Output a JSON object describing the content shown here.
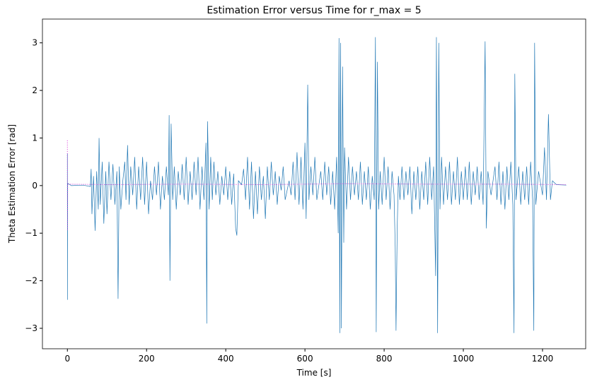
{
  "chart_data": {
    "type": "line",
    "title": "Estimation Error versus Time for r_max = 5",
    "x_label": "Time [s]",
    "y_label": "Theta Estimation Error [rad]",
    "xlim": [
      -63,
      1309
    ],
    "ylim": [
      -3.43,
      3.5
    ],
    "xticks": [
      0,
      200,
      400,
      600,
      800,
      1000,
      1200
    ],
    "yticks": [
      {
        "value": -3,
        "label": "−3"
      },
      {
        "value": -2,
        "label": "−2"
      },
      {
        "value": -1,
        "label": "−1"
      },
      0,
      1,
      2,
      3
    ],
    "series": [
      {
        "color": "#1f77b4",
        "style": "solid",
        "x": [
          0,
          0.3,
          0.6,
          10,
          40,
          58,
          60,
          62,
          66,
          70,
          74,
          78,
          80,
          83,
          88,
          92,
          97,
          100,
          105,
          110,
          115,
          120,
          125,
          128,
          131,
          135,
          140,
          145,
          148,
          152,
          156,
          160,
          165,
          170,
          175,
          180,
          185,
          190,
          195,
          200,
          205,
          210,
          215,
          220,
          225,
          230,
          235,
          240,
          245,
          250,
          255,
          257,
          259,
          262,
          266,
          270,
          275,
          280,
          285,
          290,
          295,
          300,
          305,
          310,
          315,
          320,
          325,
          330,
          335,
          340,
          345,
          350,
          352,
          354,
          358,
          362,
          366,
          370,
          375,
          380,
          385,
          390,
          395,
          400,
          405,
          410,
          415,
          420,
          425,
          428,
          432,
          440,
          445,
          450,
          455,
          460,
          465,
          470,
          475,
          480,
          485,
          490,
          495,
          500,
          505,
          510,
          515,
          520,
          525,
          530,
          535,
          540,
          545,
          550,
          560,
          565,
          570,
          575,
          580,
          585,
          590,
          595,
          600,
          603,
          607,
          610,
          615,
          620,
          625,
          630,
          640,
          645,
          650,
          655,
          660,
          665,
          670,
          675,
          680,
          684,
          686,
          688,
          690,
          692,
          695,
          698,
          700,
          705,
          710,
          715,
          720,
          725,
          730,
          735,
          740,
          745,
          750,
          755,
          760,
          765,
          770,
          775,
          778,
          780,
          783,
          786,
          790,
          795,
          800,
          805,
          810,
          815,
          820,
          825,
          828,
          830,
          833,
          836,
          840,
          845,
          850,
          855,
          860,
          865,
          870,
          875,
          880,
          885,
          890,
          895,
          900,
          905,
          910,
          915,
          920,
          925,
          930,
          932,
          935,
          938,
          941,
          945,
          950,
          955,
          960,
          965,
          970,
          975,
          980,
          985,
          990,
          995,
          1000,
          1005,
          1010,
          1015,
          1020,
          1025,
          1030,
          1035,
          1040,
          1045,
          1050,
          1055,
          1058,
          1062,
          1070,
          1080,
          1085,
          1090,
          1095,
          1100,
          1105,
          1110,
          1115,
          1120,
          1125,
          1128,
          1130,
          1133,
          1140,
          1145,
          1150,
          1155,
          1160,
          1165,
          1170,
          1175,
          1178,
          1180,
          1183,
          1190,
          1200,
          1205,
          1210,
          1215,
          1220,
          1225,
          1235,
          1260
        ],
        "values": [
          0.67,
          -2.4,
          0.05,
          0,
          0.01,
          -0.02,
          0.35,
          -0.6,
          0.2,
          -0.95,
          0.3,
          -0.5,
          1.0,
          -0.4,
          0.5,
          -0.8,
          0.3,
          -0.6,
          0.5,
          -0.3,
          0.45,
          -0.4,
          0.3,
          -2.38,
          0.4,
          -0.5,
          0.1,
          0.5,
          -0.3,
          0.85,
          -0.4,
          0.4,
          -0.2,
          0.6,
          -0.5,
          0.4,
          -0.3,
          0.6,
          -0.4,
          0.5,
          -0.6,
          0.1,
          -0.3,
          0.4,
          -0.2,
          0.5,
          -0.5,
          0.2,
          -0.3,
          0.4,
          -0.2,
          1.48,
          -2.0,
          1.3,
          -0.3,
          0.4,
          -0.5,
          0.3,
          -0.2,
          0.45,
          -0.3,
          0.6,
          -0.4,
          0.3,
          -0.3,
          0.5,
          -0.2,
          0.6,
          -0.5,
          0.4,
          -0.3,
          0.9,
          -2.9,
          1.35,
          -0.5,
          0.6,
          -0.3,
          0.5,
          -0.2,
          0.3,
          -0.4,
          0.2,
          -0.2,
          0.4,
          -0.3,
          0.3,
          -0.4,
          0.25,
          -0.9,
          -1.05,
          0.1,
          0.02,
          0.35,
          -0.3,
          0.6,
          -0.5,
          0.5,
          -0.7,
          0.3,
          -0.6,
          0.4,
          -0.3,
          0.2,
          -0.7,
          0.4,
          -0.3,
          0.5,
          -0.2,
          0.3,
          -0.4,
          0.2,
          -0.1,
          0.4,
          -0.3,
          0.1,
          -0.2,
          0.5,
          -0.3,
          0.7,
          -0.4,
          0.6,
          -0.5,
          0.9,
          -0.7,
          2.12,
          -0.3,
          0.4,
          -0.2,
          0.6,
          -0.3,
          0.3,
          -0.3,
          0.5,
          -0.2,
          0.4,
          -0.4,
          0.3,
          -0.5,
          0.6,
          -1.0,
          3.1,
          -3.1,
          3.0,
          -3.0,
          2.5,
          -1.2,
          0.8,
          -0.5,
          0.6,
          -0.3,
          0.4,
          -0.2,
          0.3,
          -0.3,
          0.5,
          -0.4,
          0.3,
          -0.3,
          0.4,
          -0.5,
          0.2,
          -0.3,
          3.12,
          -3.08,
          2.6,
          -0.5,
          0.3,
          -0.4,
          0.6,
          -0.3,
          0.4,
          -0.5,
          0.3,
          -0.2,
          -1.3,
          -3.05,
          -0.9,
          0.2,
          -0.3,
          0.4,
          -0.3,
          0.3,
          -0.2,
          0.4,
          -0.6,
          0.3,
          -0.3,
          0.4,
          -0.5,
          0.3,
          -0.3,
          0.5,
          -0.4,
          0.6,
          -0.3,
          0.4,
          -1.9,
          3.12,
          -3.1,
          3.0,
          -0.5,
          0.6,
          -0.4,
          0.4,
          -0.3,
          0.5,
          -0.4,
          0.3,
          -0.3,
          0.6,
          -0.4,
          0.3,
          -0.3,
          0.4,
          -0.3,
          0.5,
          -0.4,
          0.3,
          -0.2,
          0.4,
          -0.3,
          0.3,
          -0.4,
          3.03,
          -0.9,
          0.3,
          -0.2,
          0.4,
          -0.3,
          0.5,
          -0.4,
          0.3,
          -0.5,
          0.4,
          -0.3,
          0.5,
          -0.4,
          -3.1,
          2.35,
          -0.3,
          0.4,
          -0.4,
          0.3,
          -0.3,
          0.4,
          -0.4,
          0.5,
          -0.3,
          -3.05,
          3.0,
          -0.4,
          0.3,
          -0.2,
          0.8,
          -0.3,
          1.5,
          -0.3,
          0.1,
          0.02,
          0.01
        ]
      },
      {
        "color": "#d62bd6",
        "style": "dotted",
        "x": [
          0,
          0.3,
          0.6,
          100,
          300,
          500,
          700,
          900,
          1100,
          1260
        ],
        "values": [
          0.95,
          -0.95,
          0.03,
          0.02,
          0.03,
          0.02,
          0.04,
          0.03,
          0.03,
          0.02
        ]
      }
    ]
  }
}
